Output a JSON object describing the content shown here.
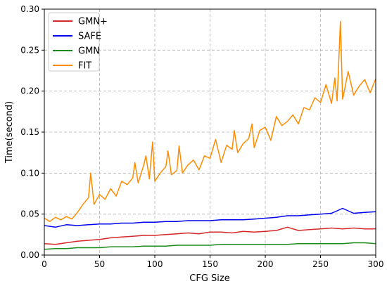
{
  "chart_data": {
    "type": "line",
    "xlabel": "CFG Size",
    "ylabel": "Time(second)",
    "xlim": [
      0,
      300
    ],
    "ylim": [
      0,
      0.3
    ],
    "xticks": [
      0,
      50,
      100,
      150,
      200,
      250,
      300
    ],
    "xtick_labels": [
      "0",
      "50",
      "100",
      "150",
      "200",
      "250",
      "300"
    ],
    "yticks": [
      0,
      0.05,
      0.1,
      0.15,
      0.2,
      0.25,
      0.3
    ],
    "ytick_labels": [
      "0.00",
      "0.05",
      "0.10",
      "0.15",
      "0.20",
      "0.25",
      "0.30"
    ],
    "grid": true,
    "legend_position": "top-left",
    "series": [
      {
        "name": "GMN+",
        "color": "#d62728",
        "points": [
          [
            0,
            0.014
          ],
          [
            10,
            0.013
          ],
          [
            20,
            0.015
          ],
          [
            30,
            0.017
          ],
          [
            40,
            0.018
          ],
          [
            50,
            0.019
          ],
          [
            60,
            0.021
          ],
          [
            70,
            0.022
          ],
          [
            80,
            0.023
          ],
          [
            90,
            0.024
          ],
          [
            100,
            0.024
          ],
          [
            110,
            0.025
          ],
          [
            120,
            0.026
          ],
          [
            130,
            0.027
          ],
          [
            140,
            0.026
          ],
          [
            150,
            0.028
          ],
          [
            160,
            0.028
          ],
          [
            170,
            0.027
          ],
          [
            180,
            0.029
          ],
          [
            190,
            0.028
          ],
          [
            200,
            0.029
          ],
          [
            210,
            0.03
          ],
          [
            220,
            0.034
          ],
          [
            230,
            0.03
          ],
          [
            240,
            0.031
          ],
          [
            250,
            0.032
          ],
          [
            260,
            0.033
          ],
          [
            270,
            0.032
          ],
          [
            280,
            0.033
          ],
          [
            290,
            0.032
          ],
          [
            300,
            0.032
          ]
        ]
      },
      {
        "name": "SAFE",
        "color": "#0000ee",
        "points": [
          [
            0,
            0.036
          ],
          [
            10,
            0.034
          ],
          [
            20,
            0.037
          ],
          [
            30,
            0.036
          ],
          [
            40,
            0.037
          ],
          [
            50,
            0.038
          ],
          [
            60,
            0.038
          ],
          [
            70,
            0.039
          ],
          [
            80,
            0.039
          ],
          [
            90,
            0.04
          ],
          [
            100,
            0.04
          ],
          [
            110,
            0.041
          ],
          [
            120,
            0.041
          ],
          [
            130,
            0.042
          ],
          [
            140,
            0.042
          ],
          [
            150,
            0.042
          ],
          [
            160,
            0.043
          ],
          [
            170,
            0.043
          ],
          [
            180,
            0.043
          ],
          [
            190,
            0.044
          ],
          [
            200,
            0.045
          ],
          [
            210,
            0.046
          ],
          [
            220,
            0.048
          ],
          [
            230,
            0.048
          ],
          [
            240,
            0.049
          ],
          [
            250,
            0.05
          ],
          [
            260,
            0.051
          ],
          [
            270,
            0.057
          ],
          [
            280,
            0.051
          ],
          [
            290,
            0.052
          ],
          [
            300,
            0.053
          ]
        ]
      },
      {
        "name": "GMN",
        "color": "#1a8a1a",
        "points": [
          [
            0,
            0.007
          ],
          [
            10,
            0.008
          ],
          [
            20,
            0.008
          ],
          [
            30,
            0.009
          ],
          [
            40,
            0.009
          ],
          [
            50,
            0.009
          ],
          [
            60,
            0.01
          ],
          [
            70,
            0.01
          ],
          [
            80,
            0.01
          ],
          [
            90,
            0.011
          ],
          [
            100,
            0.011
          ],
          [
            110,
            0.011
          ],
          [
            120,
            0.012
          ],
          [
            130,
            0.012
          ],
          [
            140,
            0.012
          ],
          [
            150,
            0.012
          ],
          [
            160,
            0.013
          ],
          [
            170,
            0.013
          ],
          [
            180,
            0.013
          ],
          [
            190,
            0.013
          ],
          [
            200,
            0.013
          ],
          [
            210,
            0.013
          ],
          [
            220,
            0.013
          ],
          [
            230,
            0.014
          ],
          [
            240,
            0.014
          ],
          [
            250,
            0.014
          ],
          [
            260,
            0.014
          ],
          [
            270,
            0.014
          ],
          [
            280,
            0.015
          ],
          [
            290,
            0.015
          ],
          [
            300,
            0.014
          ]
        ]
      },
      {
        "name": "FIT",
        "color": "#ff8c00",
        "points": [
          [
            0,
            0.045
          ],
          [
            5,
            0.041
          ],
          [
            10,
            0.046
          ],
          [
            15,
            0.043
          ],
          [
            20,
            0.047
          ],
          [
            25,
            0.044
          ],
          [
            30,
            0.052
          ],
          [
            35,
            0.062
          ],
          [
            40,
            0.07
          ],
          [
            42,
            0.1
          ],
          [
            45,
            0.062
          ],
          [
            50,
            0.074
          ],
          [
            55,
            0.068
          ],
          [
            60,
            0.081
          ],
          [
            65,
            0.072
          ],
          [
            70,
            0.09
          ],
          [
            75,
            0.086
          ],
          [
            80,
            0.094
          ],
          [
            82,
            0.113
          ],
          [
            85,
            0.088
          ],
          [
            90,
            0.11
          ],
          [
            92,
            0.121
          ],
          [
            95,
            0.093
          ],
          [
            98,
            0.138
          ],
          [
            100,
            0.09
          ],
          [
            105,
            0.1
          ],
          [
            110,
            0.108
          ],
          [
            112,
            0.127
          ],
          [
            115,
            0.098
          ],
          [
            120,
            0.103
          ],
          [
            122,
            0.133
          ],
          [
            125,
            0.1
          ],
          [
            130,
            0.11
          ],
          [
            135,
            0.116
          ],
          [
            140,
            0.104
          ],
          [
            145,
            0.121
          ],
          [
            150,
            0.118
          ],
          [
            155,
            0.141
          ],
          [
            160,
            0.113
          ],
          [
            165,
            0.134
          ],
          [
            170,
            0.129
          ],
          [
            172,
            0.152
          ],
          [
            175,
            0.125
          ],
          [
            180,
            0.136
          ],
          [
            185,
            0.142
          ],
          [
            188,
            0.16
          ],
          [
            190,
            0.131
          ],
          [
            195,
            0.152
          ],
          [
            200,
            0.156
          ],
          [
            205,
            0.14
          ],
          [
            210,
            0.169
          ],
          [
            215,
            0.158
          ],
          [
            220,
            0.163
          ],
          [
            225,
            0.171
          ],
          [
            230,
            0.16
          ],
          [
            235,
            0.18
          ],
          [
            240,
            0.177
          ],
          [
            245,
            0.192
          ],
          [
            250,
            0.186
          ],
          [
            255,
            0.208
          ],
          [
            260,
            0.185
          ],
          [
            263,
            0.216
          ],
          [
            265,
            0.188
          ],
          [
            268,
            0.285
          ],
          [
            270,
            0.19
          ],
          [
            275,
            0.224
          ],
          [
            280,
            0.195
          ],
          [
            285,
            0.206
          ],
          [
            290,
            0.214
          ],
          [
            295,
            0.198
          ],
          [
            300,
            0.215
          ]
        ]
      }
    ]
  }
}
